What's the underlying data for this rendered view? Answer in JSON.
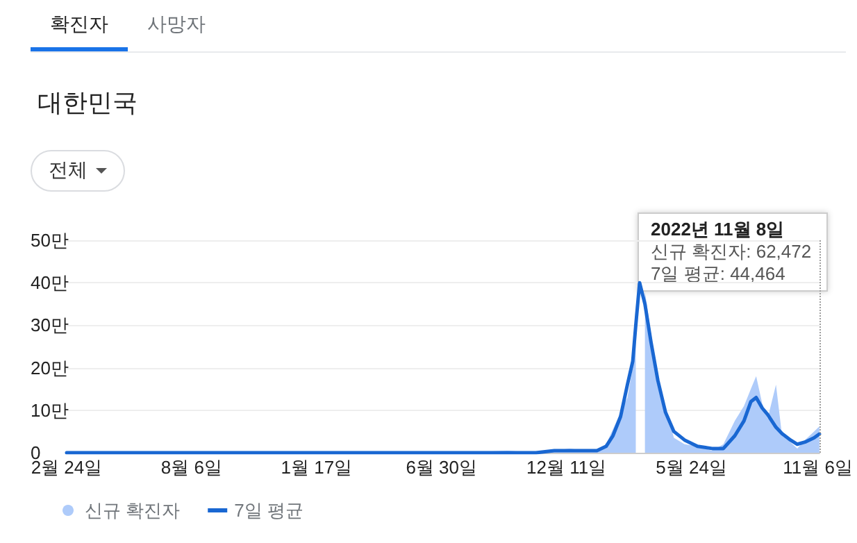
{
  "chart_data": {
    "type": "area",
    "title": "대한민국",
    "annotations": [
      "확진자",
      "사망자",
      "전체",
      "2022년 11월 8일",
      "신규 확진자: 62,472",
      "7일 평균: 44,464"
    ],
    "x": [
      "2020-02-24",
      "2020-03-03",
      "2020-04-15",
      "2020-08-27",
      "2020-10-01",
      "2020-12-25",
      "2021-02-15",
      "2021-04-20",
      "2021-07-25",
      "2021-09-25",
      "2021-11-01",
      "2021-11-25",
      "2021-12-15",
      "2022-01-05",
      "2022-01-20",
      "2022-02-01",
      "2022-02-10",
      "2022-02-20",
      "2022-03-01",
      "2022-03-08",
      "2022-03-12",
      "2022-03-17",
      "2022-03-24",
      "2022-04-01",
      "2022-04-10",
      "2022-04-20",
      "2022-05-01",
      "2022-05-15",
      "2022-06-01",
      "2022-06-20",
      "2022-07-05",
      "2022-07-20",
      "2022-08-01",
      "2022-08-10",
      "2022-08-17",
      "2022-08-25",
      "2022-09-01",
      "2022-09-12",
      "2022-09-20",
      "2022-10-01",
      "2022-10-10",
      "2022-10-20",
      "2022-11-01",
      "2022-11-08"
    ],
    "series": [
      {
        "name": "신규 확진자",
        "color": "#aecbfa",
        "values": [
          0,
          0,
          0,
          0,
          0,
          0,
          0,
          0,
          0,
          0.5,
          0,
          0.5,
          1,
          0.5,
          0.5,
          2,
          5.5,
          9.5,
          13,
          20,
          35,
          null,
          38,
          28,
          16.5,
          11,
          3.5,
          2,
          1.5,
          0.5,
          2,
          7.5,
          11,
          15,
          18,
          11.5,
          8,
          16,
          4,
          2.5,
          1,
          3,
          5,
          6.2
        ]
      },
      {
        "name": "7일 평균",
        "type": "line",
        "color": "#1967d2",
        "values": [
          0,
          0,
          0,
          0,
          0,
          0,
          0,
          0,
          0,
          0,
          0,
          0.5,
          0.5,
          0.5,
          0.5,
          1.5,
          4,
          8.5,
          16,
          21.5,
          30,
          40,
          35,
          26,
          17,
          9.5,
          5,
          3,
          1.5,
          1,
          1,
          4,
          7.5,
          12,
          13,
          10.5,
          9,
          6,
          4.5,
          3,
          2,
          2.5,
          3.5,
          4.4
        ]
      }
    ],
    "xlim": [
      "2020-02-24",
      "2022-11-08"
    ],
    "xticks": [
      {
        "value": "2020-02-24",
        "label": "2월 24일"
      },
      {
        "value": "2020-08-06",
        "label": "8월 6일"
      },
      {
        "value": "2021-01-17",
        "label": "1월 17일"
      },
      {
        "value": "2021-06-30",
        "label": "6월 30일"
      },
      {
        "value": "2021-12-11",
        "label": "12월 11일"
      },
      {
        "value": "2022-05-24",
        "label": "5월 24일"
      },
      {
        "value": "2022-11-06",
        "label": "11월 6일"
      }
    ],
    "ylim": [
      0,
      50
    ],
    "yticks": [
      0,
      {
        "value": 10,
        "label": "10만"
      },
      {
        "value": 20,
        "label": "20만"
      },
      {
        "value": 30,
        "label": "30만"
      },
      {
        "value": 40,
        "label": "40만"
      },
      {
        "value": 50,
        "label": "50만"
      }
    ],
    "ref_lines": [
      {
        "axis": "x",
        "value": "2022-11-08",
        "label": null,
        "color": "#9e9e9e",
        "line_style": "dotted"
      }
    ],
    "grid": "y",
    "legend": "bottom left",
    "line_style": "solid"
  }
}
